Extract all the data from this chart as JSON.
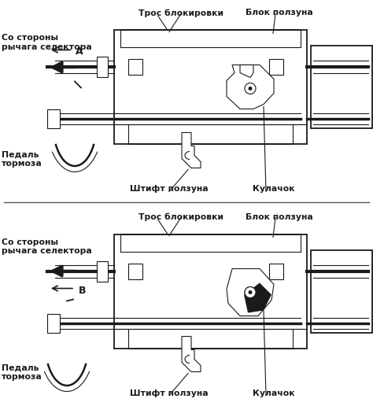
{
  "bg_color": "#ffffff",
  "lc": "#1a1a1a",
  "lw": 1.3,
  "lw2": 0.8,
  "lw3": 0.5,
  "fs": 7.8,
  "fs_letter": 9.0,
  "top": {
    "tros": "Трос блокировки",
    "blok": "Блок ползуна",
    "so_storony": "Со стороны\nрычага селектора",
    "pedal": "Педаль\nтормоза",
    "shtift": "Штифт ползуна",
    "kulachok": "Кулачок",
    "letter": "A"
  },
  "bot": {
    "tros": "Трос блокировки",
    "blok": "Блок ползуна",
    "so_storony": "Со стороны\nрычага селектора",
    "pedal": "Педаль\nтормоза",
    "shtift": "Штифт ползуна",
    "kulachok": "Кулачок",
    "letter": "B"
  }
}
